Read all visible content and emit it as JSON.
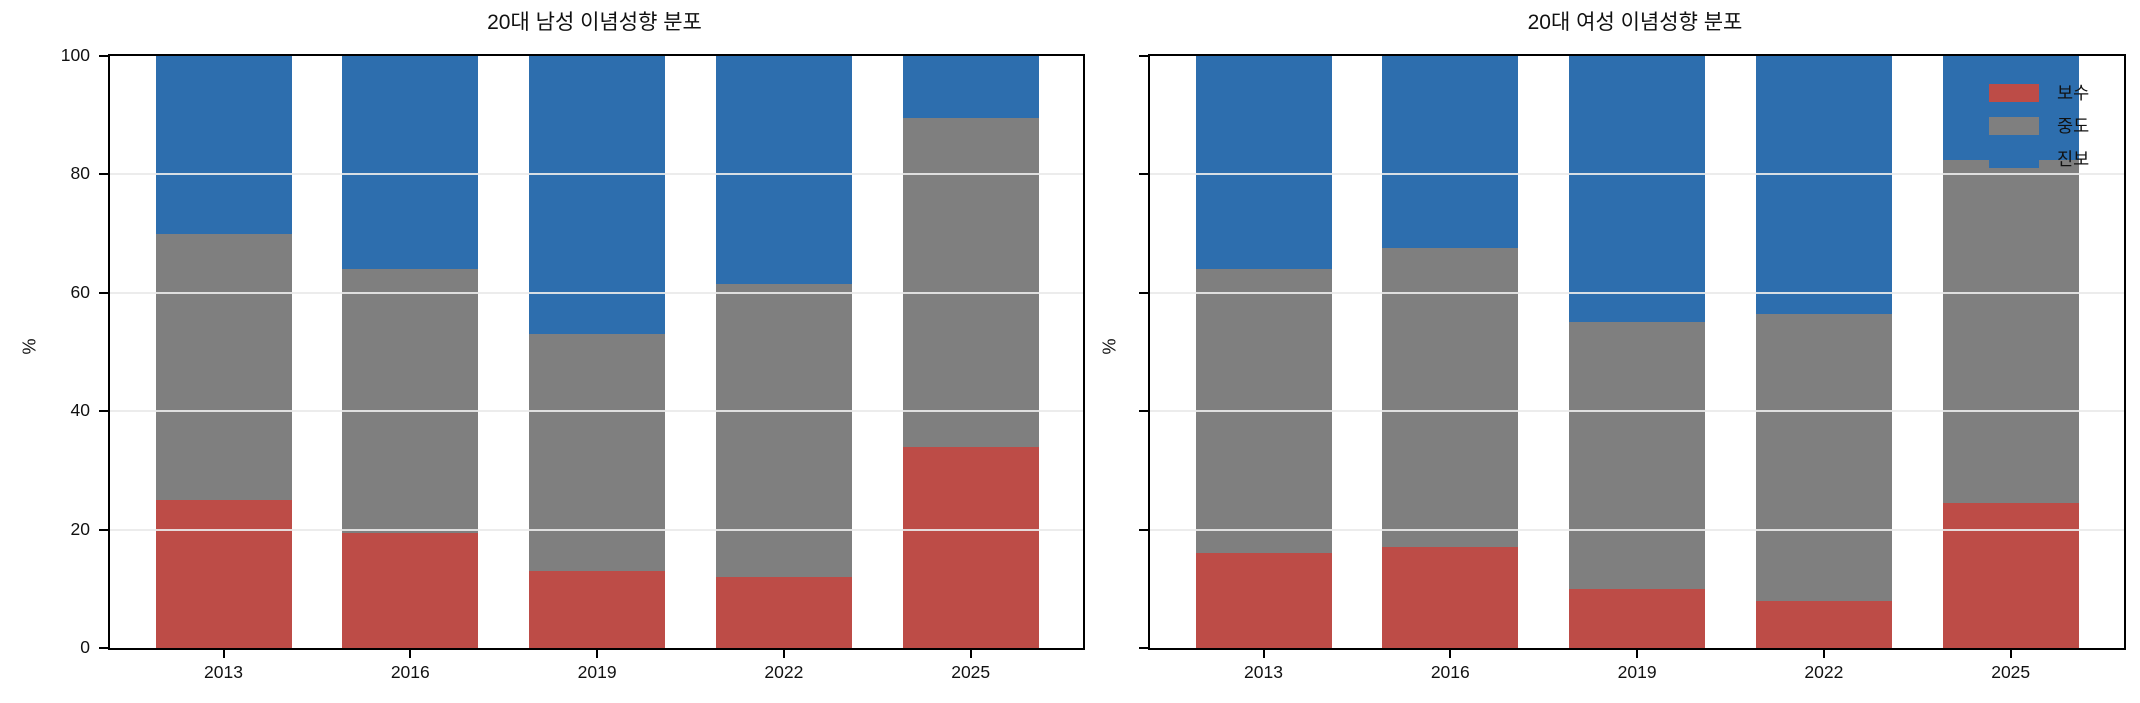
{
  "figure": {
    "background": "#ffffff",
    "panel_count": 2
  },
  "chart_data": [
    {
      "type": "bar",
      "stacked": true,
      "title": "20대 남성 이념성향 분포",
      "xlabel": "",
      "ylabel": "%",
      "categories": [
        "2013",
        "2016",
        "2019",
        "2022",
        "2025"
      ],
      "series": [
        {
          "name": "보수",
          "color": "#bd4c47",
          "values": [
            25,
            19.5,
            13,
            12,
            34
          ]
        },
        {
          "name": "중도",
          "color": "#7f7f7f",
          "values": [
            45,
            44.5,
            40,
            49.5,
            55.5
          ]
        },
        {
          "name": "진보",
          "color": "#2d6eae",
          "values": [
            30,
            36,
            47,
            38.5,
            10.5
          ]
        }
      ],
      "ylim": [
        0,
        100
      ],
      "y_ticks": [
        0,
        20,
        40,
        60,
        80,
        100
      ],
      "y_tick_labels_visible": true,
      "grid": true,
      "legend": null
    },
    {
      "type": "bar",
      "stacked": true,
      "title": "20대 여성 이념성향 분포",
      "xlabel": "",
      "ylabel": "%",
      "categories": [
        "2013",
        "2016",
        "2019",
        "2022",
        "2025"
      ],
      "series": [
        {
          "name": "보수",
          "color": "#bd4c47",
          "values": [
            16,
            17,
            10,
            8,
            24.5
          ]
        },
        {
          "name": "중도",
          "color": "#7f7f7f",
          "values": [
            48,
            50.5,
            45,
            48.5,
            58
          ]
        },
        {
          "name": "진보",
          "color": "#2d6eae",
          "values": [
            36,
            32.5,
            45,
            43.5,
            17.5
          ]
        }
      ],
      "ylim": [
        0,
        100
      ],
      "y_ticks": [
        0,
        20,
        40,
        60,
        80,
        100
      ],
      "y_tick_labels_visible": false,
      "grid": true,
      "legend": {
        "position": "upper right",
        "labels": [
          "보수",
          "중도",
          "진보"
        ]
      }
    }
  ]
}
